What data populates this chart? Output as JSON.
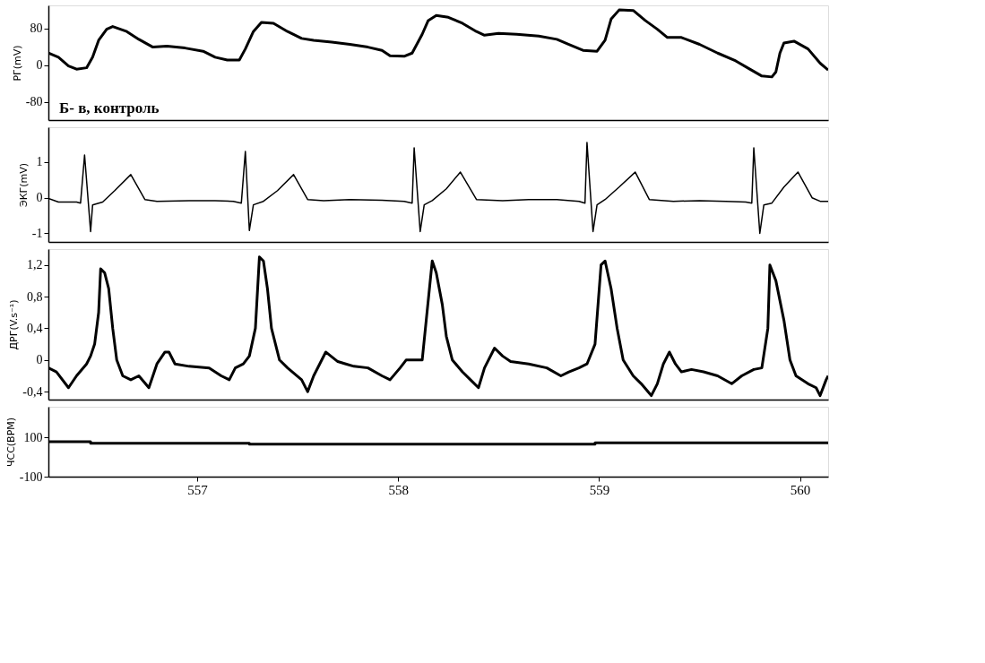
{
  "chart_data": [
    {
      "type": "line",
      "ylabel": "РГ(mV)",
      "xlim": [
        556.26,
        560.14
      ],
      "ylim": [
        -120,
        130
      ],
      "yticks": [
        -80,
        0,
        80
      ],
      "tick_labels": "y",
      "grid": false,
      "annotations": [
        "Б- в, контроль"
      ],
      "series": [
        {
          "color": "#000000",
          "x": [
            556.26,
            556.31,
            556.36,
            556.4,
            556.45,
            556.48,
            556.51,
            556.55,
            556.58,
            556.65,
            556.71,
            556.78,
            556.85,
            556.94,
            557.03,
            557.09,
            557.15,
            557.21,
            557.24,
            557.28,
            557.32,
            557.38,
            557.45,
            557.52,
            557.58,
            557.67,
            557.76,
            557.85,
            557.92,
            557.96,
            558.03,
            558.07,
            558.12,
            558.15,
            558.19,
            558.25,
            558.32,
            558.39,
            558.43,
            558.5,
            558.59,
            558.7,
            558.79,
            558.85,
            558.92,
            558.99,
            559.03,
            559.06,
            559.1,
            559.17,
            559.23,
            559.29,
            559.34,
            559.41,
            559.5,
            559.59,
            559.68,
            559.75,
            559.81,
            559.86,
            559.88,
            559.9,
            559.92,
            559.97,
            560.04,
            560.1,
            560.14
          ],
          "values": [
            26,
            17,
            -2,
            -9,
            -6,
            17,
            54,
            78,
            84,
            73,
            56,
            39,
            41,
            37,
            30,
            17,
            11,
            11,
            35,
            73,
            93,
            91,
            73,
            58,
            54,
            50,
            45,
            39,
            32,
            20,
            19,
            26,
            67,
            97,
            108,
            104,
            91,
            73,
            65,
            69,
            67,
            63,
            56,
            45,
            32,
            30,
            54,
            100,
            120,
            119,
            97,
            78,
            60,
            60,
            45,
            26,
            9,
            -9,
            -24,
            -26,
            -15,
            26,
            48,
            52,
            35,
            4,
            -11
          ]
        }
      ]
    },
    {
      "type": "line",
      "ylabel": "ЭКГ(mV)",
      "xlim": [
        556.26,
        560.14
      ],
      "ylim": [
        -1.24,
        1.98
      ],
      "yticks": [
        -1,
        0,
        1
      ],
      "tick_labels": "y",
      "grid": false,
      "series": [
        {
          "color": "#000000",
          "x": [
            556.26,
            556.31,
            556.4,
            556.42,
            556.44,
            556.47,
            556.48,
            556.53,
            556.59,
            556.67,
            556.74,
            556.8,
            556.96,
            557.09,
            557.18,
            557.22,
            557.24,
            557.26,
            557.28,
            557.33,
            557.4,
            557.48,
            557.55,
            557.63,
            557.76,
            557.92,
            558.03,
            558.07,
            558.08,
            558.11,
            558.13,
            558.17,
            558.24,
            558.31,
            558.39,
            558.52,
            558.65,
            558.79,
            558.9,
            558.93,
            558.94,
            558.97,
            558.99,
            559.03,
            559.1,
            559.18,
            559.25,
            559.37,
            559.5,
            559.63,
            559.73,
            559.76,
            559.77,
            559.8,
            559.82,
            559.86,
            559.92,
            559.99,
            560.06,
            560.1,
            560.14
          ],
          "values": [
            -0.02,
            -0.12,
            -0.12,
            -0.15,
            1.2,
            -0.95,
            -0.2,
            -0.12,
            0.2,
            0.65,
            -0.05,
            -0.1,
            -0.08,
            -0.08,
            -0.1,
            -0.15,
            1.3,
            -0.92,
            -0.2,
            -0.1,
            0.2,
            0.65,
            -0.05,
            -0.08,
            -0.05,
            -0.07,
            -0.1,
            -0.15,
            1.4,
            -0.95,
            -0.2,
            -0.08,
            0.25,
            0.72,
            -0.05,
            -0.08,
            -0.05,
            -0.05,
            -0.1,
            -0.15,
            1.55,
            -0.95,
            -0.2,
            -0.05,
            0.3,
            0.72,
            -0.05,
            -0.1,
            -0.08,
            -0.1,
            -0.12,
            -0.15,
            1.4,
            -1.0,
            -0.2,
            -0.15,
            0.3,
            0.72,
            0.0,
            -0.1,
            -0.1
          ]
        }
      ]
    },
    {
      "type": "line",
      "ylabel": "ДРГ(V.s⁻¹)",
      "xlim": [
        556.26,
        560.14
      ],
      "ylim": [
        -0.5,
        1.4
      ],
      "yticks": [
        {
          "value": -0.4,
          "label": "-0,4"
        },
        {
          "value": 0,
          "label": "0"
        },
        {
          "value": 0.4,
          "label": "0,4"
        },
        {
          "value": 0.8,
          "label": "0,8"
        },
        {
          "value": 1.2,
          "label": "1,2"
        }
      ],
      "tick_labels": "y",
      "grid": false,
      "series": [
        {
          "color": "#000000",
          "x": [
            556.26,
            556.3,
            556.36,
            556.4,
            556.45,
            556.47,
            556.49,
            556.51,
            556.52,
            556.54,
            556.56,
            556.58,
            556.6,
            556.63,
            556.67,
            556.71,
            556.76,
            556.8,
            556.84,
            556.86,
            556.89,
            556.96,
            557.06,
            557.12,
            557.16,
            557.19,
            557.23,
            557.26,
            557.29,
            557.31,
            557.33,
            557.35,
            557.37,
            557.41,
            557.45,
            557.52,
            557.55,
            557.58,
            557.61,
            557.64,
            557.7,
            557.74,
            557.78,
            557.85,
            557.92,
            557.96,
            558.01,
            558.04,
            558.12,
            558.14,
            558.17,
            558.19,
            558.22,
            558.24,
            558.27,
            558.32,
            558.36,
            558.4,
            558.43,
            558.48,
            558.52,
            558.56,
            558.65,
            558.74,
            558.81,
            558.85,
            558.9,
            558.94,
            558.98,
            559.01,
            559.03,
            559.06,
            559.09,
            559.12,
            559.17,
            559.21,
            559.26,
            559.29,
            559.32,
            559.35,
            559.38,
            559.41,
            559.46,
            559.52,
            559.59,
            559.66,
            559.71,
            559.77,
            559.81,
            559.84,
            559.85,
            559.88,
            559.92,
            559.95,
            559.98,
            560.04,
            560.08,
            560.1,
            560.13,
            560.14
          ],
          "values": [
            -0.1,
            -0.15,
            -0.35,
            -0.2,
            -0.05,
            0.05,
            0.2,
            0.6,
            1.15,
            1.1,
            0.9,
            0.4,
            0.0,
            -0.2,
            -0.25,
            -0.2,
            -0.35,
            -0.05,
            0.1,
            0.1,
            -0.05,
            -0.08,
            -0.1,
            -0.2,
            -0.25,
            -0.1,
            -0.05,
            0.05,
            0.4,
            1.3,
            1.25,
            0.9,
            0.4,
            0.0,
            -0.1,
            -0.25,
            -0.4,
            -0.2,
            -0.05,
            0.1,
            -0.02,
            -0.05,
            -0.08,
            -0.1,
            -0.2,
            -0.25,
            -0.1,
            0.0,
            0.0,
            0.5,
            1.25,
            1.1,
            0.7,
            0.3,
            0.0,
            -0.15,
            -0.25,
            -0.35,
            -0.1,
            0.15,
            0.05,
            -0.02,
            -0.05,
            -0.1,
            -0.2,
            -0.15,
            -0.1,
            -0.05,
            0.2,
            1.2,
            1.25,
            0.9,
            0.4,
            0.0,
            -0.2,
            -0.3,
            -0.45,
            -0.3,
            -0.05,
            0.1,
            -0.05,
            -0.15,
            -0.12,
            -0.15,
            -0.2,
            -0.3,
            -0.2,
            -0.12,
            -0.1,
            0.4,
            1.2,
            1.0,
            0.5,
            0.0,
            -0.2,
            -0.3,
            -0.35,
            -0.45,
            -0.25,
            -0.2
          ]
        }
      ]
    },
    {
      "type": "step",
      "ylabel": "ЧСС(BPM)",
      "xlim": [
        556.26,
        560.14
      ],
      "ylim": [
        -100,
        256
      ],
      "yticks": [
        -100,
        100
      ],
      "xticks": [
        557,
        558,
        559,
        560
      ],
      "grid": false,
      "series": [
        {
          "color": "#000000",
          "x": [
            556.26,
            556.47,
            557.26,
            558.98,
            560.14
          ],
          "values": [
            78,
            70,
            65,
            72,
            72
          ]
        }
      ]
    }
  ]
}
